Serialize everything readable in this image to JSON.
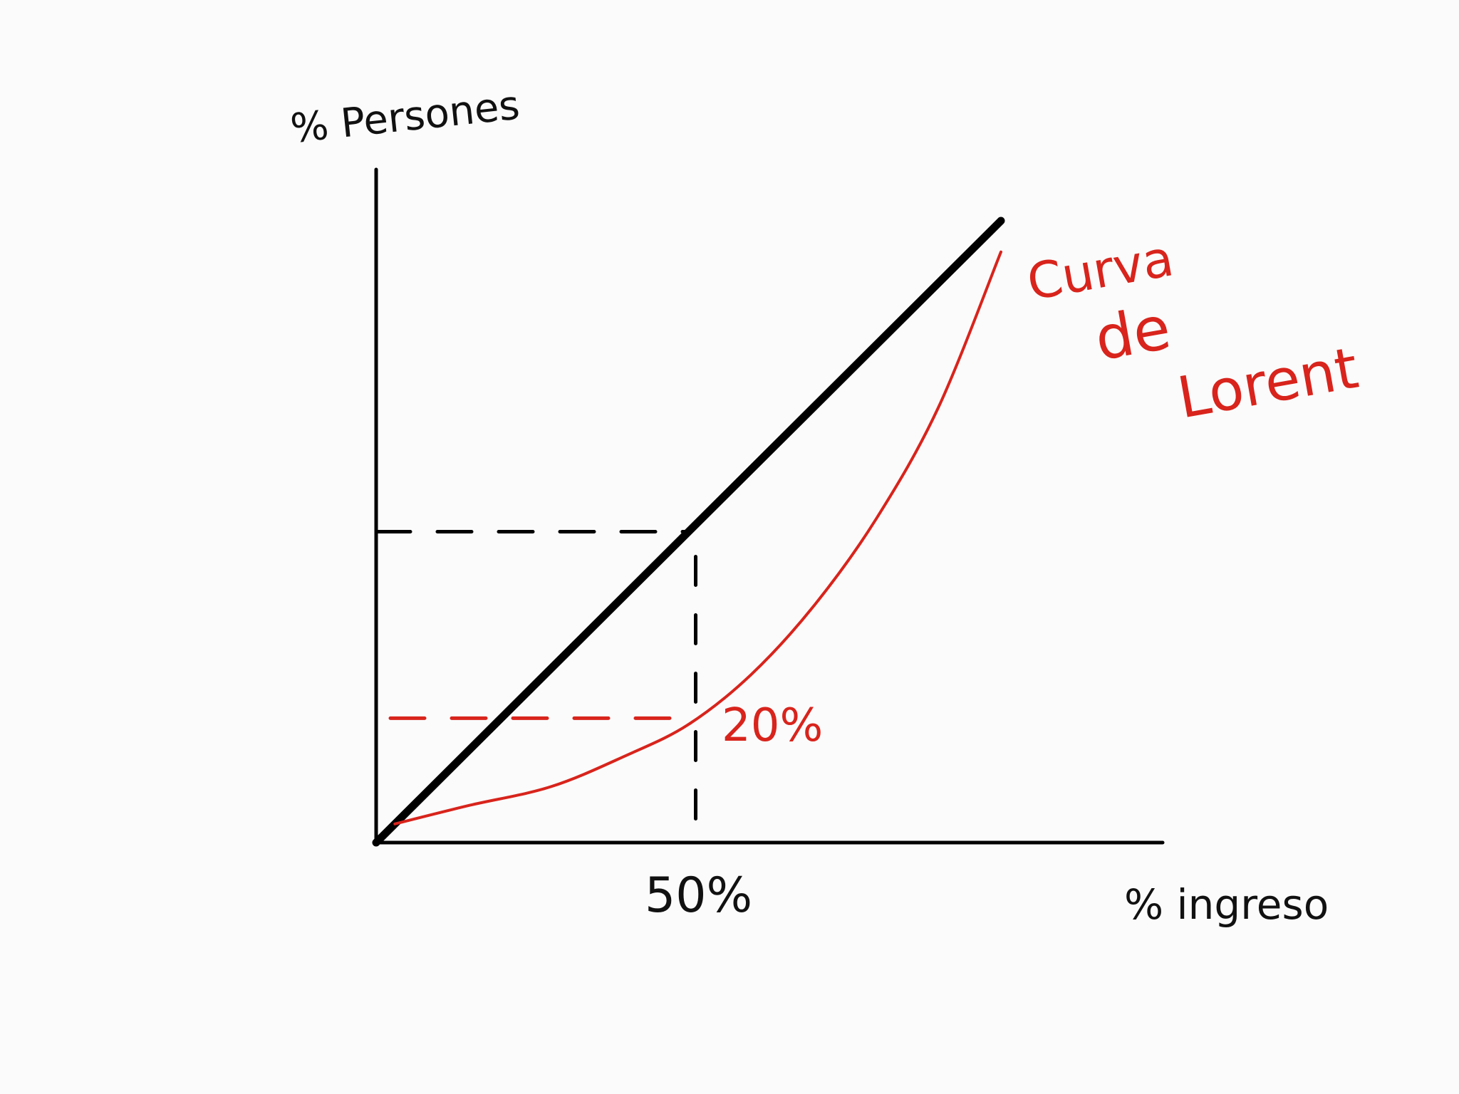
{
  "chart_data": {
    "type": "line",
    "title": "",
    "ylabel": "% Persones",
    "xlabel": "% ingreso",
    "xlim": [
      0,
      100
    ],
    "ylim": [
      0,
      100
    ],
    "grid": false,
    "legend": "none",
    "x_tick_labels": [
      {
        "x": 50,
        "label": "50%"
      }
    ],
    "y_tick_labels": [
      {
        "y": 20,
        "label": "20%"
      }
    ],
    "series": [
      {
        "name": "",
        "color": "#000000",
        "x": [
          0,
          100
        ],
        "y": [
          0,
          100
        ]
      },
      {
        "name": "Curva de Lorent",
        "color": "#d8241c",
        "x": [
          3,
          15,
          28,
          40,
          50,
          60,
          70,
          80,
          90,
          100
        ],
        "y": [
          3,
          6,
          9,
          14,
          19,
          27,
          38,
          52,
          70,
          95
        ]
      }
    ],
    "guides": [
      {
        "color": "#000000",
        "x": 50,
        "y": 50
      },
      {
        "color": "#d8241c",
        "x": 50,
        "y": 20
      }
    ],
    "annotation": {
      "lines": [
        "Curva",
        "de",
        "Lorent"
      ],
      "color": "#d8241c"
    }
  }
}
